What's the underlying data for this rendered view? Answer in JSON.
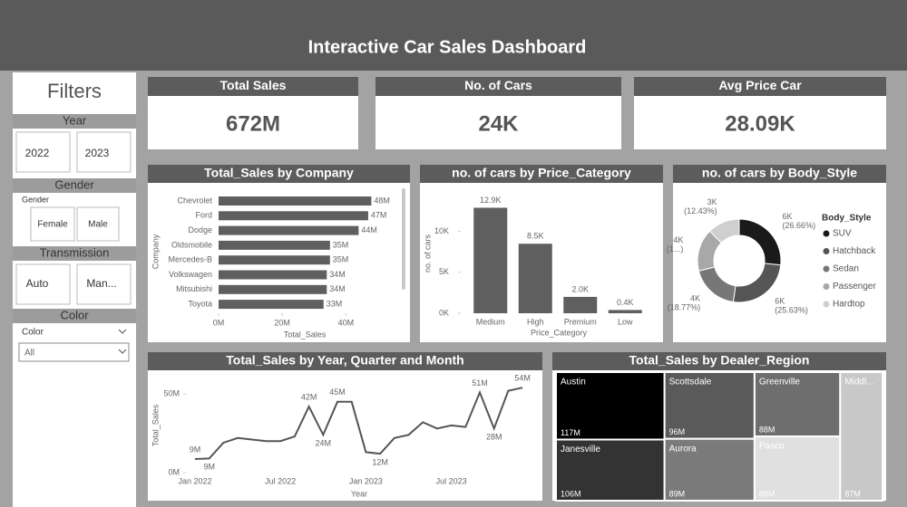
{
  "header": {
    "title": "Interactive Car Sales Dashboard"
  },
  "filters": {
    "title": "Filters",
    "year": {
      "label": "Year",
      "options": [
        "2022",
        "2023"
      ]
    },
    "gender": {
      "label": "Gender",
      "field_label": "Gender",
      "options": [
        "Female",
        "Male"
      ]
    },
    "transmission": {
      "label": "Transmission",
      "options": [
        "Auto",
        "Man..."
      ]
    },
    "color": {
      "label": "Color",
      "field_label": "Color",
      "selected": "All"
    }
  },
  "kpis": [
    {
      "title": "Total Sales",
      "value": "672M"
    },
    {
      "title": "No. of Cars",
      "value": "24K"
    },
    {
      "title": "Avg Price Car",
      "value": "28.09K"
    }
  ],
  "chart_data": [
    {
      "type": "hbar",
      "title": "Total_Sales by Company",
      "categories": [
        "Chevrolet",
        "Ford",
        "Dodge",
        "Oldsmobile",
        "Mercedes-B",
        "Volkswagen",
        "Mitsubishi",
        "Toyota"
      ],
      "values": [
        48,
        47,
        44,
        35,
        35,
        34,
        34,
        33
      ],
      "value_labels": [
        "48M",
        "47M",
        "44M",
        "35M",
        "35M",
        "34M",
        "34M",
        "33M"
      ],
      "color": "#5f5f5f",
      "xlim": [
        0,
        57
      ],
      "xticks": [
        {
          "value": 0,
          "label": "0M"
        },
        {
          "value": 20,
          "label": "20M"
        },
        {
          "value": 40,
          "label": "40M"
        }
      ],
      "xlabel": "Total_Sales",
      "ylabel": "Company"
    },
    {
      "type": "bar",
      "title": "no. of cars by Price_Category",
      "categories": [
        "Medium",
        "High",
        "Premium",
        "Low"
      ],
      "values": [
        12.9,
        8.5,
        2.0,
        0.4
      ],
      "value_labels": [
        "12.9K",
        "8.5K",
        "2.0K",
        "0.4K"
      ],
      "color": "#5f5f5f",
      "ylim": [
        0,
        14.5
      ],
      "yticks": [
        {
          "value": 0,
          "label": "0K"
        },
        {
          "value": 5,
          "label": "5K"
        },
        {
          "value": 10,
          "label": "10K"
        }
      ],
      "xlabel": "Price_Category",
      "ylabel": "no. of cars"
    },
    {
      "type": "donut",
      "title": "no. of cars by Body_Style",
      "categories": [
        "SUV",
        "Hatchback",
        "Sedan",
        "Passenger",
        "Hardtop"
      ],
      "values": [
        26.66,
        25.63,
        18.77,
        16.51,
        12.43
      ],
      "value_labels": [
        "6K (26.66%)",
        "6K (25.63%)",
        "4K (18.77%)",
        "4K (1...)",
        "3K (12.43%)"
      ],
      "colors": [
        "#1a1a1a",
        "#555555",
        "#777777",
        "#a8a8a8",
        "#cfcfcf"
      ],
      "legend_title": "Body_Style",
      "legend": "right"
    },
    {
      "type": "line",
      "title": "Total_Sales by Year, Quarter and Month",
      "categories": [
        "Jan 2022",
        null,
        null,
        null,
        null,
        null,
        "Jul 2022",
        null,
        null,
        null,
        null,
        null,
        "Jan 2023",
        null,
        null,
        null,
        null,
        null,
        "Jul 2023",
        null,
        null,
        null,
        null,
        null
      ],
      "values": [
        8.6,
        9,
        19,
        22,
        21,
        20,
        20,
        23,
        42,
        24,
        45,
        45,
        13,
        12,
        22,
        24,
        32,
        28,
        30,
        29,
        51,
        28,
        52,
        54
      ],
      "value_labels": [
        "9M",
        "9M",
        null,
        null,
        null,
        null,
        null,
        null,
        "42M",
        "24M",
        "45M",
        null,
        null,
        "12M",
        null,
        null,
        null,
        null,
        null,
        null,
        "51M",
        "28M",
        null,
        "54M"
      ],
      "color": "#555555",
      "ylim": [
        0,
        61
      ],
      "yticks": [
        {
          "value": 0,
          "label": "0M"
        },
        {
          "value": 50,
          "label": "50M"
        }
      ],
      "xlabel": "Year",
      "ylabel": "Total_Sales"
    },
    {
      "type": "treemap",
      "title": "Total_Sales by Dealer_Region",
      "categories": [
        "Austin",
        "Scottsdale",
        "Greenville",
        "Middl...",
        "Janesville",
        "Aurora",
        "Pasco"
      ],
      "values": [
        117,
        96,
        88,
        87,
        106,
        89,
        88
      ],
      "value_labels": [
        "117M",
        "96M",
        "88M",
        "87M",
        "106M",
        "89M",
        "88M"
      ],
      "colors": [
        "#000000",
        "#5a5a5a",
        "#6e6e6e",
        "#c8c8c8",
        "#333333",
        "#7a7a7a",
        "#e0e0e0"
      ]
    }
  ]
}
